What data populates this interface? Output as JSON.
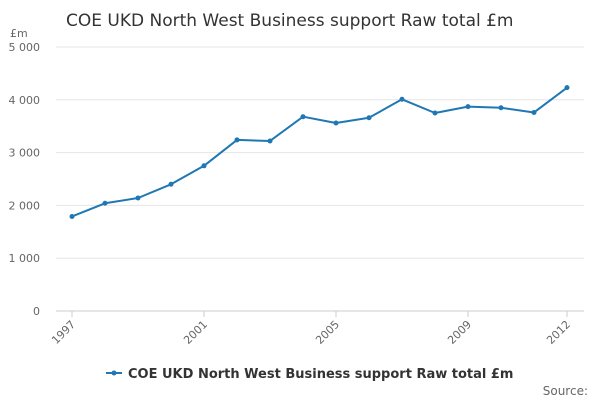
{
  "chart_data": {
    "type": "line",
    "title": "COE UKD North West Business support Raw total £m",
    "unit_label": "£m",
    "x": [
      "1997",
      "1998",
      "1999",
      "2000",
      "2001",
      "2002",
      "2003",
      "2004",
      "2005",
      "2006",
      "2007",
      "2008",
      "2009",
      "2010",
      "2011",
      "2012"
    ],
    "x_tick_labels": [
      "1997",
      "2001",
      "2005",
      "2009",
      "2012"
    ],
    "y_tick_labels": [
      "0",
      "1 000",
      "2 000",
      "3 000",
      "4 000",
      "5 000"
    ],
    "y_ticks": [
      0,
      1000,
      2000,
      3000,
      4000,
      5000
    ],
    "ylim": [
      0,
      5000
    ],
    "series": [
      {
        "name": "COE UKD North West Business support Raw total £m",
        "values": [
          1790,
          2040,
          2140,
          2400,
          2750,
          3240,
          3220,
          3680,
          3560,
          3660,
          4010,
          3750,
          3870,
          3850,
          3760,
          4230
        ],
        "color": "#1f77b4"
      }
    ],
    "grid": true,
    "legend_position": "bottom-center",
    "source_label": "Source:"
  }
}
